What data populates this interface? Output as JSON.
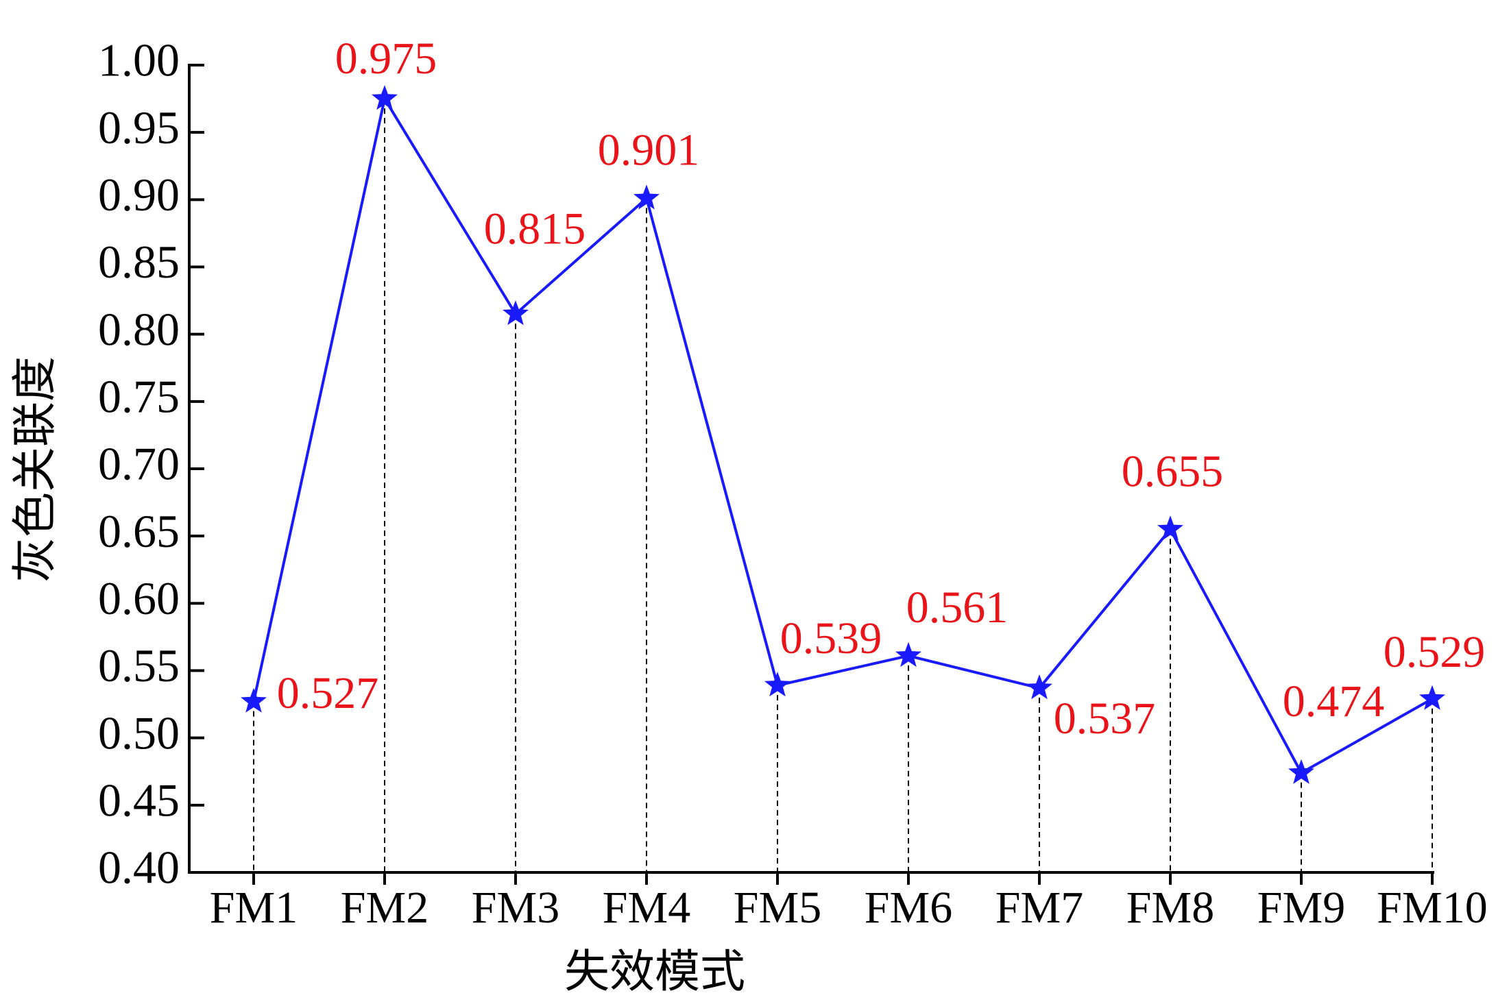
{
  "chart_data": {
    "type": "line",
    "x_label": "失效模式",
    "y_label": "灰色关联度",
    "categories": [
      "FM1",
      "FM2",
      "FM3",
      "FM4",
      "FM5",
      "FM6",
      "FM7",
      "FM8",
      "FM9",
      "FM10"
    ],
    "series": [
      {
        "color": "#1a1aff",
        "label_color": "#e8141a",
        "values": [
          0.527,
          0.975,
          0.815,
          0.901,
          0.539,
          0.561,
          0.537,
          0.655,
          0.474,
          0.529
        ]
      }
    ],
    "ylim": [
      0.4,
      1.0
    ],
    "yticks": [
      {
        "value": 0.4,
        "label": "0.40"
      },
      0.45,
      {
        "value": 0.5,
        "label": "0.50"
      },
      0.55,
      {
        "value": 0.6,
        "label": "0.60"
      },
      0.65,
      {
        "value": 0.7,
        "label": "0.70"
      },
      0.75,
      {
        "value": 0.8,
        "label": "0.80"
      },
      0.85,
      {
        "value": 0.9,
        "label": "0.90"
      },
      0.95,
      {
        "value": 1.0,
        "label": "1.00"
      }
    ],
    "drop_lines": true
  }
}
